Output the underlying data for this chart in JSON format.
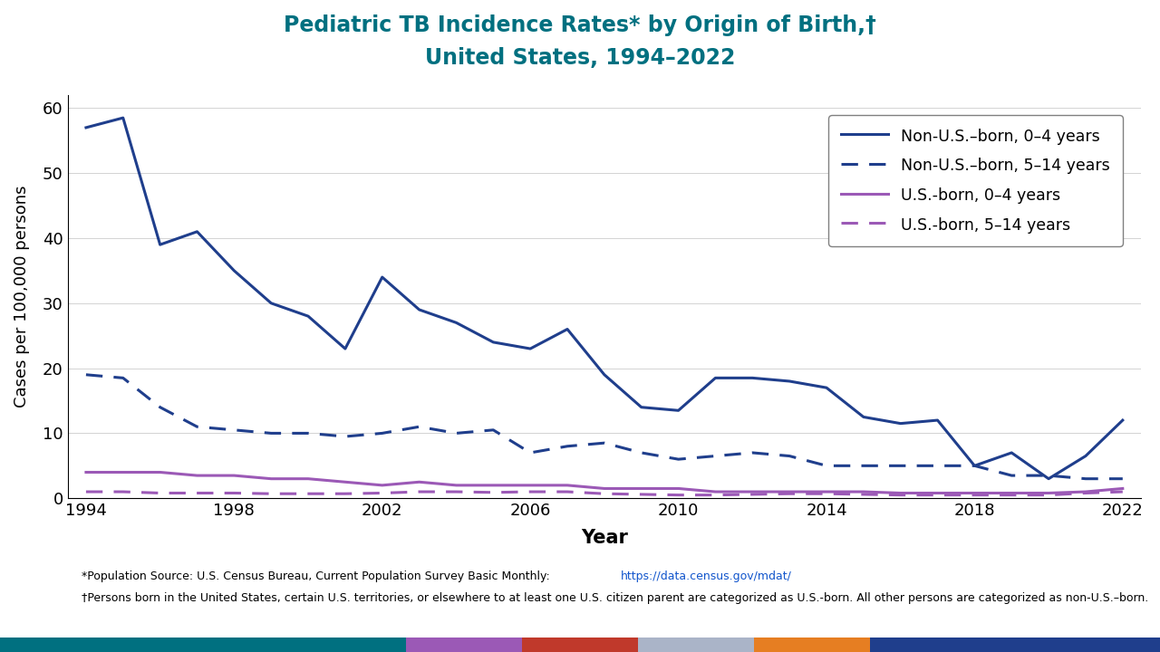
{
  "title_line1": "Pediatric TB Incidence Rates* by Origin of Birth,†",
  "title_line2": "United States, 1994–2022",
  "title_color": "#007080",
  "xlabel": "Year",
  "ylabel": "Cases per 100,000 persons",
  "ylim": [
    0,
    62
  ],
  "yticks": [
    0,
    10,
    20,
    30,
    40,
    50,
    60
  ],
  "xticks": [
    1994,
    1998,
    2002,
    2006,
    2010,
    2014,
    2018,
    2022
  ],
  "years": [
    1994,
    1995,
    1996,
    1997,
    1998,
    1999,
    2000,
    2001,
    2002,
    2003,
    2004,
    2005,
    2006,
    2007,
    2008,
    2009,
    2010,
    2011,
    2012,
    2013,
    2014,
    2015,
    2016,
    2017,
    2018,
    2019,
    2020,
    2021,
    2022
  ],
  "non_us_0_4": [
    57,
    58.5,
    39,
    41,
    35,
    30,
    28,
    23,
    34,
    29,
    27,
    24,
    23,
    26,
    19,
    14,
    13.5,
    18.5,
    18.5,
    18,
    17,
    12.5,
    11.5,
    12,
    5,
    7,
    3,
    6.5,
    12
  ],
  "non_us_5_14": [
    19,
    18.5,
    14,
    11,
    10.5,
    10,
    10,
    9.5,
    10,
    11,
    10,
    10.5,
    7,
    8,
    8.5,
    7,
    6,
    6.5,
    7,
    6.5,
    5,
    5,
    5,
    5,
    5,
    3.5,
    3.5,
    3,
    3
  ],
  "us_0_4": [
    4,
    4,
    4,
    3.5,
    3.5,
    3,
    3,
    2.5,
    2,
    2.5,
    2,
    2,
    2,
    2,
    1.5,
    1.5,
    1.5,
    1,
    1,
    1,
    1,
    1,
    0.8,
    0.8,
    0.8,
    0.8,
    0.8,
    1,
    1.5
  ],
  "us_5_14": [
    1,
    1,
    0.8,
    0.8,
    0.8,
    0.7,
    0.7,
    0.7,
    0.8,
    1.0,
    1.0,
    0.9,
    1.0,
    1.0,
    0.7,
    0.6,
    0.5,
    0.5,
    0.6,
    0.7,
    0.7,
    0.6,
    0.5,
    0.5,
    0.5,
    0.5,
    0.5,
    0.8,
    1.0
  ],
  "color_non_us": "#1f3e8c",
  "color_us": "#9b59b6",
  "legend_labels": [
    "Non-U.S.–born, 0–4 years",
    "Non-U.S.–born, 5–14 years",
    "U.S.-born, 0–4 years",
    "U.S.-born, 5–14 years"
  ],
  "footnote1_prefix": "*Population Source: U.S. Census Bureau, Current Population Survey Basic Monthly: ",
  "footnote1_url": "https://data.census.gov/mdat/",
  "footnote2": "†Persons born in the United States, certain U.S. territories, or elsewhere to at least one U.S. citizen parent are categorized as U.S.-born. All other persons are categorized as non-U.S.–born.",
  "footer_colors": [
    "#007080",
    "#9b59b6",
    "#c0392b",
    "#aab4c8",
    "#e67e22",
    "#1f3e8c"
  ],
  "footer_widths": [
    0.35,
    0.1,
    0.1,
    0.1,
    0.1,
    0.25
  ]
}
